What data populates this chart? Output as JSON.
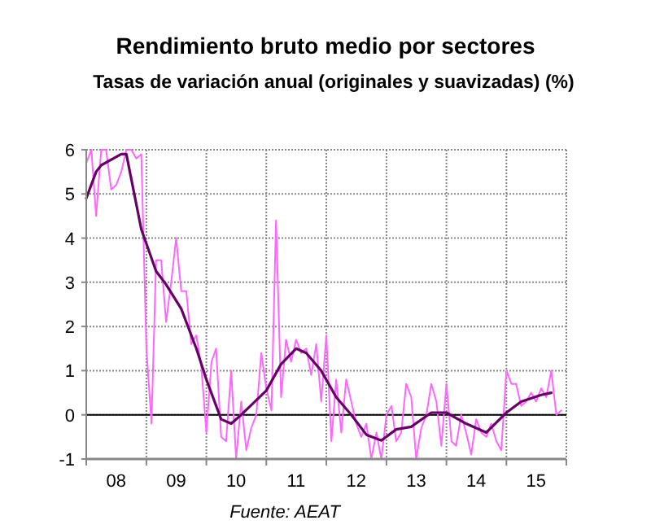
{
  "chart_data": {
    "type": "line",
    "title": "Rendimiento bruto medio por sectores",
    "subtitle": "Tasas de variación anual (originales y suavizadas) (%)",
    "annotations": [
      "Fuente: AEAT"
    ],
    "xlim": [
      "2008-01",
      "2016-01"
    ],
    "xticks": [
      {
        "value": "2008-01",
        "label": null
      },
      {
        "value": "2008-07",
        "label": "08"
      },
      {
        "value": "2009-01",
        "label": null
      },
      {
        "value": "2009-07",
        "label": "09"
      },
      {
        "value": "2010-01",
        "label": null
      },
      {
        "value": "2010-07",
        "label": "10"
      },
      {
        "value": "2011-01",
        "label": null
      },
      {
        "value": "2011-07",
        "label": "11"
      },
      {
        "value": "2012-01",
        "label": null
      },
      {
        "value": "2012-07",
        "label": "12"
      },
      {
        "value": "2013-01",
        "label": null
      },
      {
        "value": "2013-07",
        "label": "13"
      },
      {
        "value": "2014-01",
        "label": null
      },
      {
        "value": "2014-07",
        "label": "14"
      },
      {
        "value": "2015-01",
        "label": null
      },
      {
        "value": "2015-07",
        "label": "15"
      },
      {
        "value": "2016-01",
        "label": null
      }
    ],
    "ylim": [
      -1,
      6
    ],
    "yticks": [
      -1,
      0,
      1,
      2,
      3,
      4,
      5,
      6
    ],
    "grid": true,
    "marker": "none",
    "line_style": "solid",
    "ref_lines": [
      {
        "axis": "y",
        "value": 0,
        "color": "#000000"
      }
    ],
    "series": [
      {
        "color": "#ff66ff",
        "x": [
          "2008-01",
          "2008-02",
          "2008-03",
          "2008-04",
          "2008-05",
          "2008-06",
          "2008-07",
          "2008-08",
          "2008-09",
          "2008-10",
          "2008-11",
          "2008-12",
          "2009-01",
          "2009-02",
          "2009-03",
          "2009-04",
          "2009-05",
          "2009-06",
          "2009-07",
          "2009-08",
          "2009-09",
          "2009-10",
          "2009-11",
          "2009-12",
          "2010-01",
          "2010-02",
          "2010-03",
          "2010-04",
          "2010-05",
          "2010-06",
          "2010-07",
          "2010-08",
          "2010-09",
          "2010-10",
          "2010-11",
          "2010-12",
          "2011-01",
          "2011-02",
          "2011-03",
          "2011-04",
          "2011-05",
          "2011-06",
          "2011-07",
          "2011-08",
          "2011-09",
          "2011-10",
          "2011-11",
          "2011-12",
          "2012-01",
          "2012-02",
          "2012-03",
          "2012-04",
          "2012-05",
          "2012-06",
          "2012-07",
          "2012-08",
          "2012-09",
          "2012-10",
          "2012-11",
          "2012-12",
          "2013-01",
          "2013-02",
          "2013-03",
          "2013-04",
          "2013-05",
          "2013-06",
          "2013-07",
          "2013-08",
          "2013-09",
          "2013-10",
          "2013-11",
          "2013-12",
          "2014-01",
          "2014-02",
          "2014-03",
          "2014-04",
          "2014-05",
          "2014-06",
          "2014-07",
          "2014-08",
          "2014-09",
          "2014-10",
          "2014-11",
          "2014-12",
          "2015-01",
          "2015-02",
          "2015-03",
          "2015-04",
          "2015-05",
          "2015-06",
          "2015-07",
          "2015-08",
          "2015-09",
          "2015-10",
          "2015-11",
          "2015-12"
        ],
        "values": [
          5.7,
          6,
          4.5,
          6,
          6,
          5.1,
          5.2,
          5.5,
          6,
          6,
          5.8,
          5.9,
          1.5,
          -0.2,
          3.5,
          3.5,
          2.1,
          3.0,
          4.0,
          2.8,
          2.8,
          1.6,
          1.8,
          1.1,
          -0.4,
          1.2,
          1.5,
          -0.5,
          -0.6,
          1.0,
          -1.0,
          0.3,
          -0.8,
          -0.3,
          0.0,
          1.4,
          0.6,
          0.1,
          4.4,
          0.4,
          1.7,
          1.2,
          1.7,
          1.4,
          1.5,
          0.9,
          1.6,
          0.3,
          1.8,
          -0.6,
          0.8,
          -0.4,
          0.8,
          0.3,
          -0.2,
          -0.5,
          -0.2,
          -1.0,
          -0.4,
          -1.0,
          0.0,
          0.2,
          -0.6,
          -0.4,
          0.7,
          0.4,
          -1.0,
          -0.3,
          0.0,
          0.7,
          0.3,
          -0.7,
          0.7,
          -0.6,
          -0.7,
          0.0,
          -0.4,
          -0.9,
          -0.1,
          -0.4,
          -0.5,
          -0.2,
          -0.6,
          -0.8,
          1.0,
          0.7,
          0.7,
          0.2,
          0.3,
          0.5,
          0.3,
          0.6,
          0.4,
          1.0,
          0.0,
          0.1
        ]
      },
      {
        "color": "#660066",
        "x": [
          "2008-01",
          "2008-03",
          "2008-04",
          "2008-08",
          "2008-09",
          "2008-12",
          "2009-03",
          "2009-05",
          "2009-08",
          "2009-11",
          "2010-01",
          "2010-04",
          "2010-06",
          "2010-08",
          "2011-01",
          "2011-04",
          "2011-07",
          "2011-09",
          "2011-12",
          "2012-03",
          "2012-06",
          "2012-09",
          "2012-12",
          "2013-03",
          "2013-06",
          "2013-10",
          "2014-01",
          "2014-05",
          "2014-09",
          "2015-01",
          "2015-04",
          "2015-08",
          "2015-10"
        ],
        "values": [
          4.9,
          5.5,
          5.65,
          5.9,
          5.9,
          4.2,
          3.25,
          2.95,
          2.4,
          1.5,
          0.8,
          -0.1,
          -0.2,
          0.0,
          0.55,
          1.15,
          1.5,
          1.4,
          1.0,
          0.4,
          0.0,
          -0.45,
          -0.58,
          -0.33,
          -0.27,
          0.05,
          0.05,
          -0.2,
          -0.4,
          0.05,
          0.3,
          0.45,
          0.5
        ]
      }
    ]
  }
}
